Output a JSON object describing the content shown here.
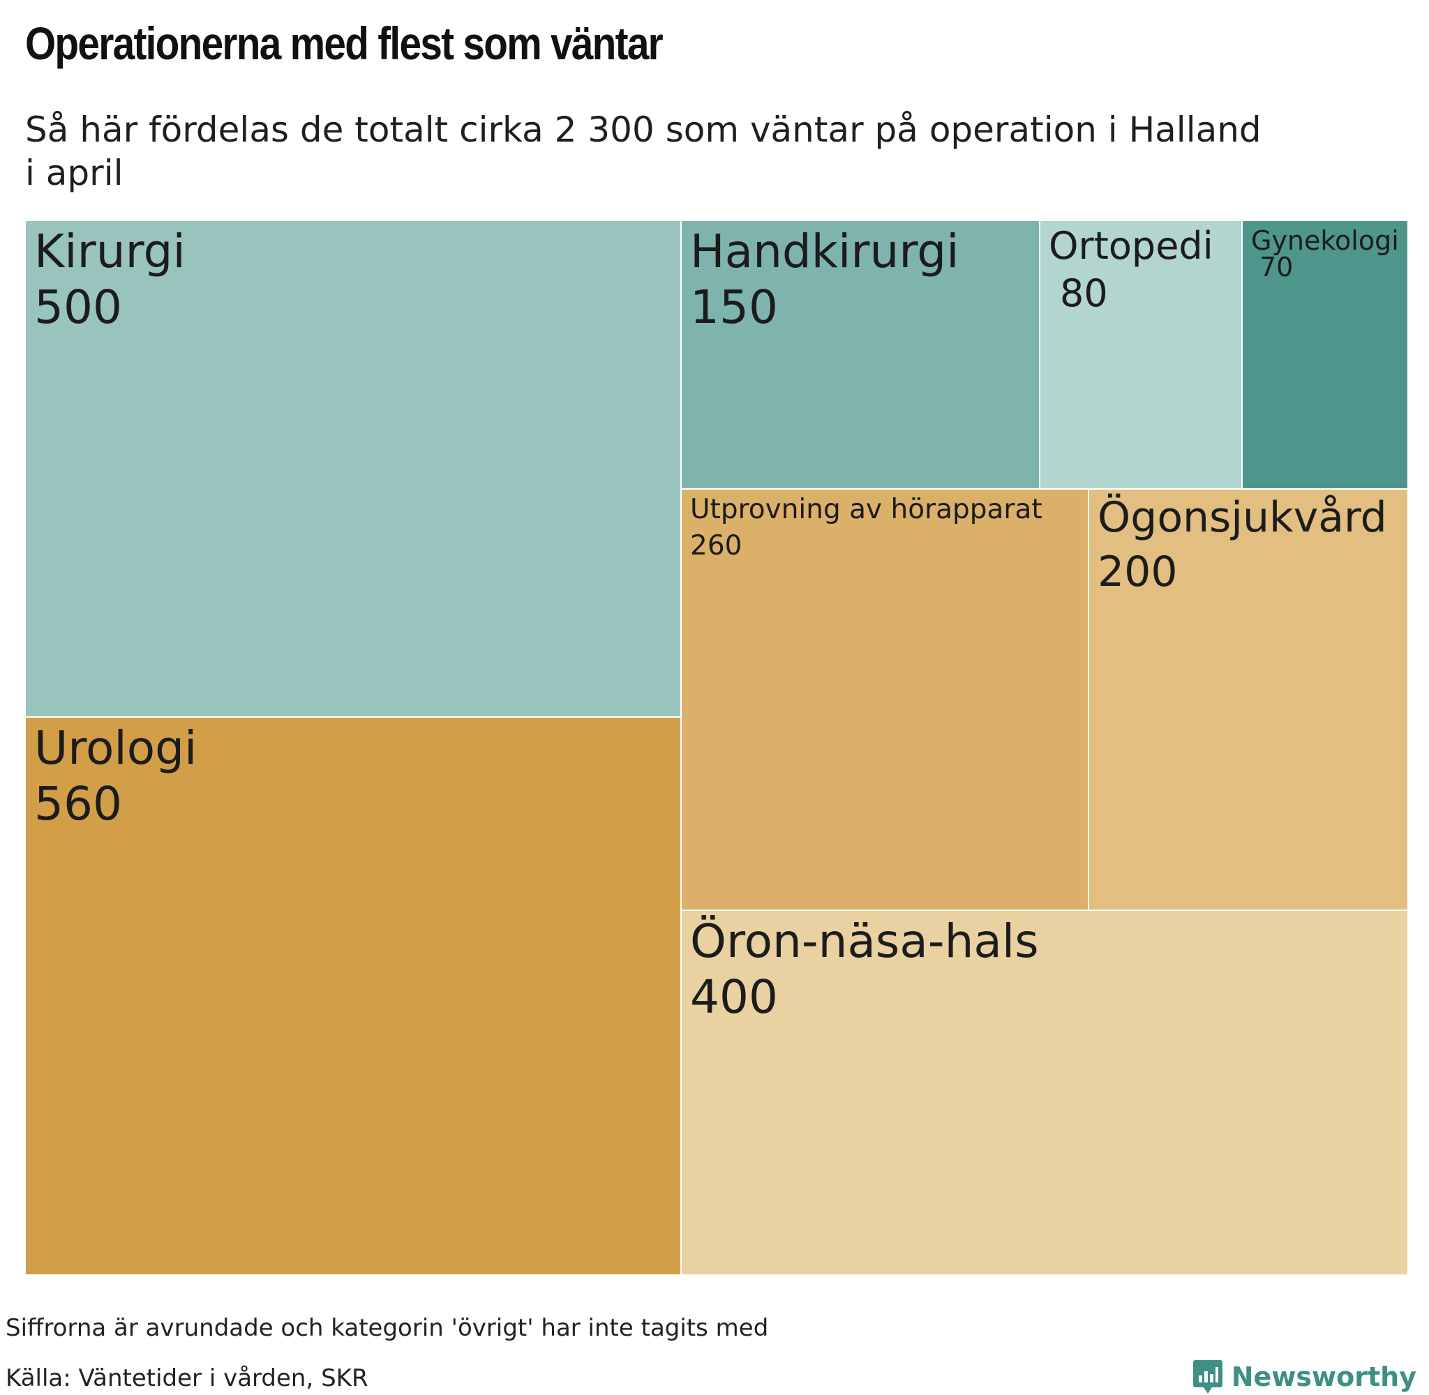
{
  "title": "Operationerna med flest som väntar",
  "subtitle": "Så här fördelas de totalt cirka 2 300 som väntar på operation i Halland i april",
  "footnote": "Siffrorna är avrundade och kategorin 'övrigt' har inte tagits med",
  "source": "Källa: Väntetider i vården, SKR",
  "logo_text": "Newsworthy",
  "chart_data": {
    "type": "treemap",
    "categories": [
      {
        "name": "Urologi",
        "value": 560,
        "color": "#d29e48"
      },
      {
        "name": "Kirurgi",
        "value": 500,
        "color": "#99c4be"
      },
      {
        "name": "Öron-näsa-hals",
        "value": 400,
        "color": "#e9d1a1"
      },
      {
        "name": "Utprovning av hörapparat",
        "value": 260,
        "color": "#dbb068"
      },
      {
        "name": "Ögonsjukvård",
        "value": 200,
        "color": "#e2bf80"
      },
      {
        "name": "Handkirurgi",
        "value": 150,
        "color": "#7fb4ae"
      },
      {
        "name": "Ortopedi",
        "value": 80,
        "color": "#b2d5cf"
      },
      {
        "name": "Gynekologi",
        "value": 70,
        "color": "#4e968b"
      }
    ]
  }
}
